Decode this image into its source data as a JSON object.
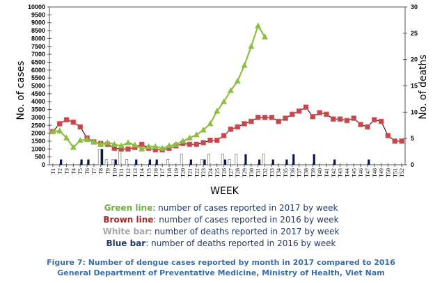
{
  "chart_data": {
    "type": "line",
    "title": "",
    "xlabel": "WEEK",
    "ylabel": "No. of cases",
    "y2label": "No. of deaths",
    "ylim": [
      0,
      10000
    ],
    "y2lim": [
      0,
      30
    ],
    "yticks": [
      0,
      500,
      1000,
      1500,
      2000,
      2500,
      3000,
      3500,
      4000,
      4500,
      5000,
      5500,
      6000,
      6500,
      7000,
      7500,
      8000,
      8500,
      9000,
      9500,
      10000
    ],
    "y2ticks": [
      0,
      5,
      10,
      15,
      20,
      25,
      30
    ],
    "categories": [
      "T1",
      "T2",
      "T3",
      "T4",
      "T5",
      "T6",
      "T7",
      "T8",
      "T9",
      "T10",
      "T11",
      "T12",
      "T13",
      "T14",
      "T15",
      "T16",
      "T17",
      "T18",
      "T19",
      "T20",
      "T21",
      "T22",
      "T23",
      "T24",
      "T25",
      "T26",
      "T27",
      "T28",
      "T29",
      "T30",
      "T31",
      "T32",
      "T33",
      "T34",
      "T35",
      "T36",
      "T37",
      "T38",
      "T39",
      "T40",
      "T41",
      "T42",
      "T43",
      "T44",
      "T45",
      "T46",
      "T47",
      "T48",
      "T49",
      "T50",
      "T51",
      "T52"
    ],
    "series": [
      {
        "name": "Cases 2017",
        "kind": "line",
        "axis": "left",
        "color": "#8cbf3f",
        "marker": "triangle",
        "values": [
          2100,
          2150,
          1700,
          1100,
          1550,
          1600,
          1450,
          1300,
          1400,
          1300,
          1200,
          1400,
          1250,
          1000,
          1150,
          1150,
          1050,
          1200,
          1300,
          1500,
          1700,
          1900,
          2200,
          2600,
          3400,
          4000,
          4700,
          5300,
          6300,
          7500,
          8800,
          8100
        ]
      },
      {
        "name": "Cases 2016",
        "kind": "line",
        "axis": "left",
        "color": "#c8464a",
        "marker": "square",
        "values": [
          2100,
          2600,
          2850,
          2700,
          2400,
          1700,
          1450,
          1350,
          1300,
          1050,
          1000,
          1000,
          1100,
          1300,
          1050,
          950,
          950,
          1050,
          1200,
          1350,
          1300,
          1300,
          1400,
          1550,
          1550,
          1850,
          2250,
          2400,
          2600,
          2750,
          3000,
          3000,
          3000,
          2750,
          2950,
          3200,
          3400,
          3650,
          3050,
          3300,
          3200,
          2900,
          2900,
          2800,
          2950,
          2550,
          2400,
          2850,
          2750,
          1850,
          1500,
          1500
        ]
      },
      {
        "name": "Deaths 2017",
        "kind": "bar",
        "axis": "right",
        "color": "#ffffff",
        "values": [
          0,
          0,
          0,
          0,
          0,
          0,
          0,
          3,
          1,
          1,
          3,
          1,
          0,
          0,
          0,
          0,
          0,
          1,
          0,
          2,
          0,
          0,
          1,
          2,
          0,
          2,
          1,
          2,
          0,
          0,
          0,
          2,
          0,
          0,
          0,
          0,
          0,
          0,
          0,
          0,
          0,
          0,
          0,
          0,
          0,
          0,
          0,
          0,
          0,
          0,
          0,
          0
        ]
      },
      {
        "name": "Deaths 2016",
        "kind": "bar",
        "axis": "right",
        "color": "#0d1650",
        "values": [
          0,
          1,
          0,
          0,
          1,
          1,
          0,
          3,
          0,
          1,
          0,
          0,
          1,
          0,
          1,
          1,
          0,
          0,
          0,
          0,
          1,
          0,
          1,
          0,
          0,
          1,
          0,
          0,
          2,
          0,
          1,
          0,
          1,
          0,
          1,
          2,
          0,
          0,
          2,
          0,
          0,
          1,
          0,
          0,
          0,
          0,
          1,
          0,
          0,
          0,
          0,
          0
        ]
      }
    ],
    "grid": false
  },
  "legend": [
    {
      "key": "Green line",
      "text": ": number of cases reported in 2017 by week",
      "color_class": "k-green"
    },
    {
      "key": "Brown line",
      "text": ": number of cases reported in 2016 by week",
      "color_class": "k-brown"
    },
    {
      "key": "White bar",
      "text": ": number of deaths reported in 2017 by week",
      "color_class": "k-white"
    },
    {
      "key": "Blue bar",
      "text": ": number of deaths reported in 2016 by week",
      "color_class": "k-blue"
    }
  ],
  "caption": {
    "line1": "Figure 7: Number of dengue cases reported by month in 2017 compared to 2016",
    "line2": "General Department of Preventative Medicine, Ministry of Health, Viet Nam"
  }
}
